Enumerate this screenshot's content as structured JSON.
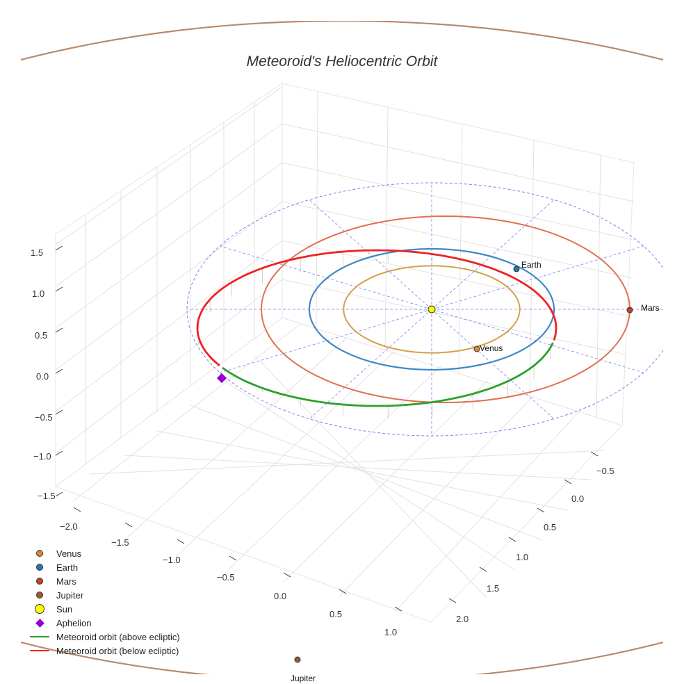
{
  "chart_data": {
    "type": "3d-line",
    "title": "Meteoroid's Heliocentric Orbit",
    "x_ticks": [
      -2.0,
      -1.5,
      -1.0,
      -0.5,
      0.0,
      0.5,
      1.0
    ],
    "x_tick_labels": [
      "−2.0",
      "−1.5",
      "−1.0",
      "−0.5",
      "0.0",
      "0.5",
      "1.0"
    ],
    "y_ticks": [
      -0.5,
      0.0,
      0.5,
      1.0,
      1.5,
      2.0
    ],
    "y_tick_labels": [
      "−0.5",
      "0.0",
      "0.5",
      "1.0",
      "1.5",
      "2.0"
    ],
    "z_ticks": [
      1.5,
      1.0,
      0.5,
      0.0,
      -0.5,
      -1.0,
      -1.5
    ],
    "z_tick_labels": [
      "1.5",
      "1.0",
      "0.5",
      "0.0",
      "−0.5",
      "−1.0",
      "−1.5"
    ],
    "planets": [
      {
        "name": "Venus",
        "radius_au": 0.72,
        "color": "#D4A04A",
        "dot_color": "#DD8A2C"
      },
      {
        "name": "Earth",
        "radius_au": 1.0,
        "color": "#3F88C5",
        "dot_color": "#1F77B4"
      },
      {
        "name": "Mars",
        "radius_au": 1.52,
        "color": "#E07050",
        "dot_color": "#C1441E"
      },
      {
        "name": "Jupiter",
        "radius_au": 5.2,
        "color": "#B98A6C",
        "dot_color": "#9C5A2C"
      }
    ],
    "sun": {
      "name": "Sun",
      "color": "#FFFF00"
    },
    "aphelion": {
      "name": "Aphelion",
      "color": "#9400D3"
    },
    "meteoroid": {
      "above_label": "Meteoroid orbit (above ecliptic)",
      "below_label": "Meteoroid orbit (below ecliptic)",
      "above_color": "#2CA02C",
      "below_color": "#EE2222"
    },
    "reference_circle_color": "#6A6AEE",
    "legend": [
      "Venus",
      "Earth",
      "Mars",
      "Jupiter",
      "Sun",
      "Aphelion",
      "Meteoroid orbit (above ecliptic)",
      "Meteoroid orbit (below ecliptic)"
    ]
  },
  "labels": {
    "title": "Meteoroid's Heliocentric Orbit",
    "venus": "Venus",
    "earth": "Earth",
    "mars": "Mars",
    "jupiter": "Jupiter",
    "sun": "Sun",
    "aphelion": "Aphelion",
    "above": "Meteoroid orbit (above ecliptic)",
    "below": "Meteoroid orbit (below ecliptic)"
  }
}
